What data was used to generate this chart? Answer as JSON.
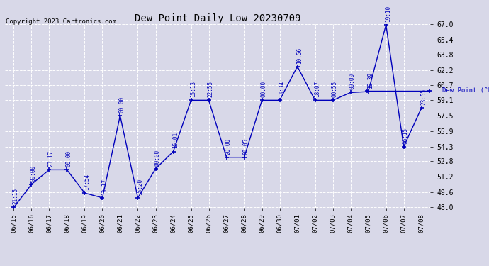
{
  "title": "Dew Point Daily Low 20230709",
  "copyright": "Copyright 2023 Cartronics.com",
  "legend_text": "Dew Point (°F)",
  "ylim": [
    48.0,
    67.0
  ],
  "yticks": [
    48.0,
    49.6,
    51.2,
    52.8,
    54.3,
    55.9,
    57.5,
    59.1,
    60.7,
    62.2,
    63.8,
    65.4,
    67.0
  ],
  "dates": [
    "06/15",
    "06/16",
    "06/17",
    "06/18",
    "06/19",
    "06/20",
    "06/21",
    "06/22",
    "06/23",
    "06/24",
    "06/25",
    "06/26",
    "06/27",
    "06/28",
    "06/29",
    "06/30",
    "07/01",
    "07/02",
    "07/03",
    "07/04",
    "07/05",
    "07/06",
    "07/07",
    "07/08"
  ],
  "values": [
    48.0,
    50.4,
    51.9,
    51.9,
    49.5,
    49.0,
    57.5,
    49.0,
    52.0,
    53.8,
    59.1,
    59.1,
    53.2,
    53.2,
    59.1,
    59.1,
    62.6,
    59.1,
    59.1,
    59.9,
    60.0,
    66.9,
    54.3,
    58.3
  ],
  "times": [
    "21:15",
    "00:00",
    "23:17",
    "00:00",
    "17:54",
    "13:17",
    "00:00",
    "15:20",
    "00:00",
    "15:01",
    "15:13",
    "22:55",
    "20:00",
    "00:05",
    "00:00",
    "13:34",
    "10:56",
    "18:07",
    "00:55",
    "00:00",
    "15:39",
    "19:10",
    "06:15",
    "23:55"
  ],
  "line_color": "#0000bb",
  "bg_color": "#d8d8e8",
  "grid_color": "#ffffff",
  "text_color": "#0000bb",
  "title_color": "#000000",
  "copyright_color": "#000000",
  "tick_color": "#000000"
}
